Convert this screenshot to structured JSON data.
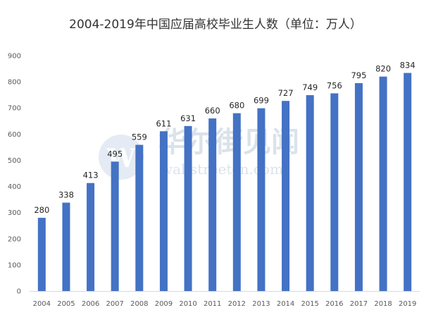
{
  "chart_data": {
    "type": "bar",
    "title": "2004-2019年中国应届高校毕业生人数（单位：万人）",
    "categories": [
      "2004",
      "2005",
      "2006",
      "2007",
      "2008",
      "2009",
      "2010",
      "2011",
      "2012",
      "2013",
      "2014",
      "2015",
      "2016",
      "2017",
      "2018",
      "2019"
    ],
    "values": [
      280,
      338,
      413,
      495,
      559,
      611,
      631,
      660,
      680,
      699,
      727,
      749,
      756,
      795,
      820,
      834
    ],
    "ylim": [
      0,
      900
    ],
    "yticks": [
      0,
      100,
      200,
      300,
      400,
      500,
      600,
      700,
      800,
      900
    ],
    "grid": false,
    "bar_color": "#4472C4",
    "xlabel": "",
    "ylabel": ""
  },
  "watermark": {
    "text": "华尔街见闻",
    "subtext": "wallstreetcn.com",
    "logo_letter": "W"
  }
}
